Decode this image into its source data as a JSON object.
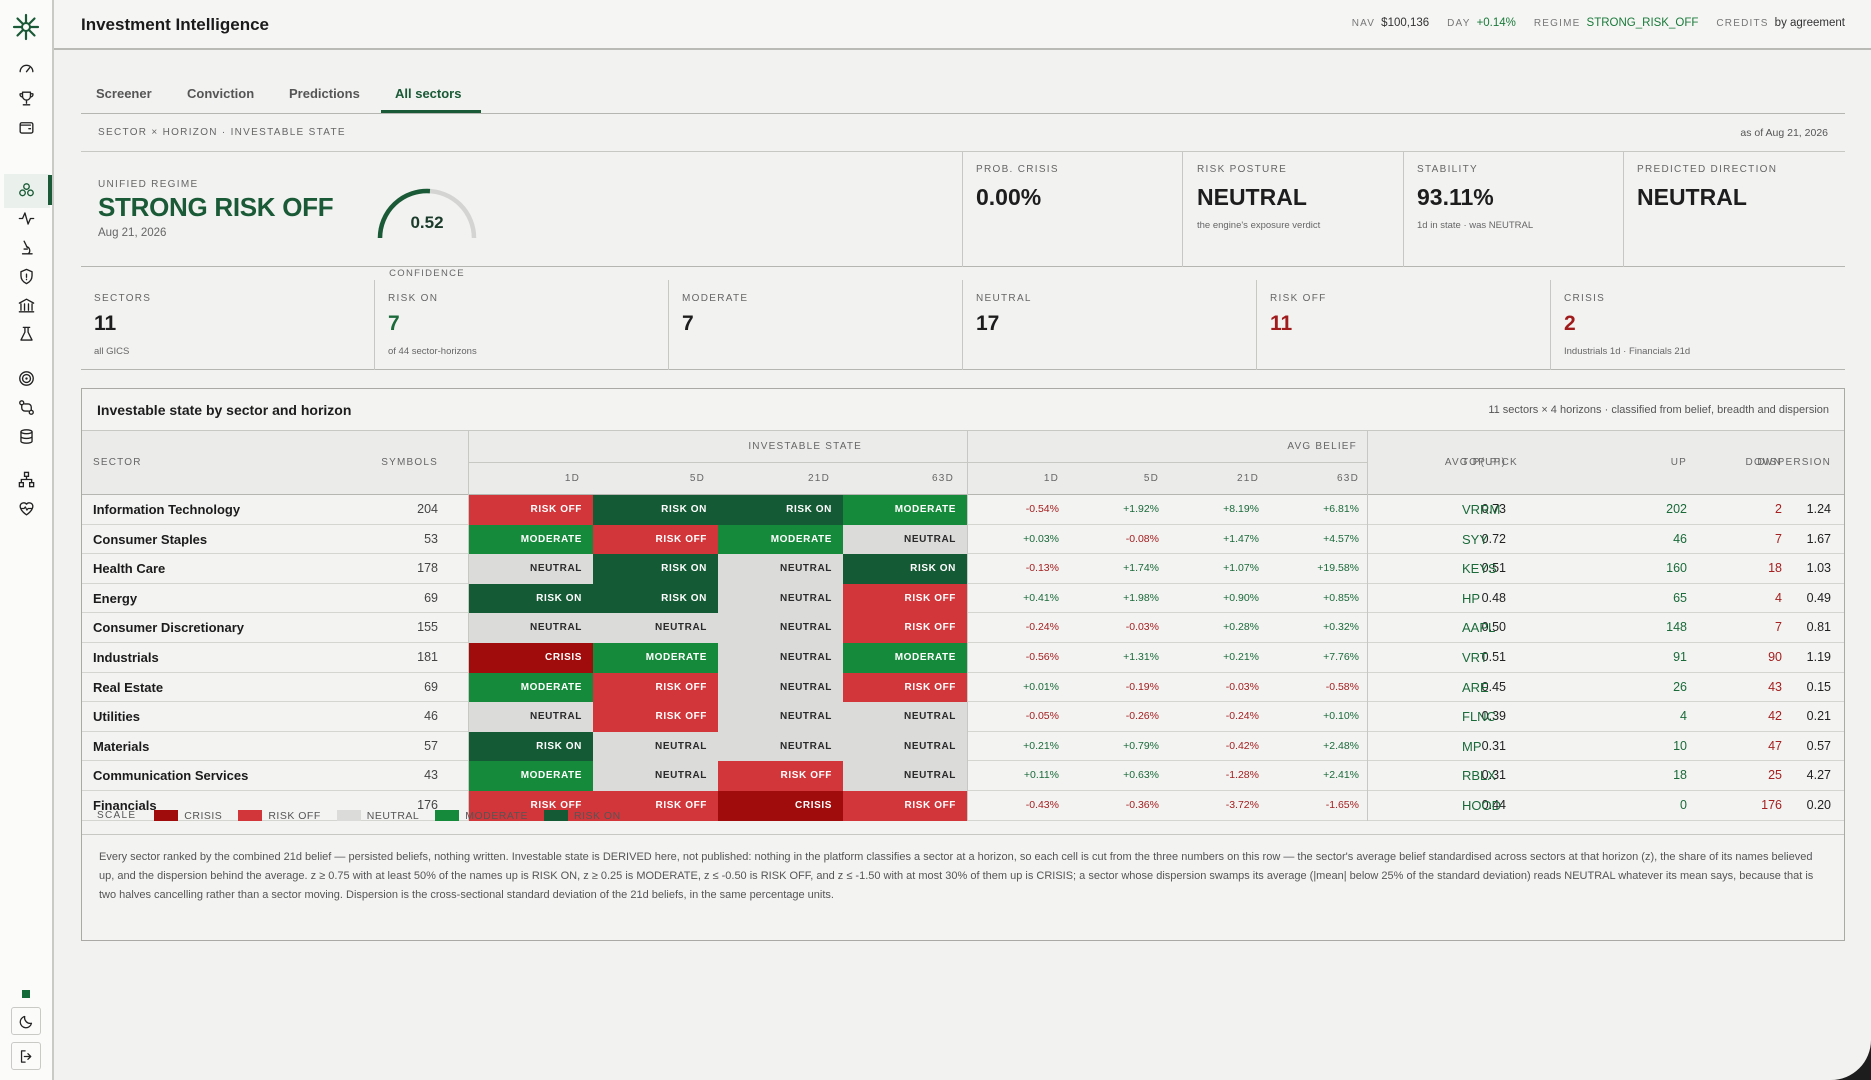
{
  "header": {
    "title": "Investment Intelligence",
    "stats": [
      {
        "label": "NAV",
        "value": "$100,136",
        "tone": "plain"
      },
      {
        "label": "DAY",
        "value": "+0.14%",
        "tone": "green"
      },
      {
        "label": "REGIME",
        "value": "STRONG_RISK_OFF",
        "tone": "green"
      },
      {
        "label": "CREDITS",
        "value": "by agreement",
        "tone": "plain"
      }
    ]
  },
  "tabs": [
    "Screener",
    "Conviction",
    "Predictions",
    "All sectors"
  ],
  "active_tab": "All sectors",
  "section": {
    "title": "SECTOR × HORIZON · INVESTABLE STATE",
    "as_of": "as of Aug 21, 2026"
  },
  "regime": {
    "label": "UNIFIED REGIME",
    "value": "STRONG RISK OFF",
    "date": "Aug 21, 2026",
    "confidence": "0.52",
    "confidence_fraction": 0.52,
    "confidence_label": "CONFIDENCE"
  },
  "stats": [
    {
      "label": "PROB. CRISIS",
      "value": "0.00%",
      "sub": ""
    },
    {
      "label": "RISK POSTURE",
      "value": "NEUTRAL",
      "sub": "the engine's exposure verdict"
    },
    {
      "label": "STABILITY",
      "value": "93.11%",
      "sub": "1d in state · was NEUTRAL"
    },
    {
      "label": "PREDICTED DIRECTION",
      "value": "NEUTRAL",
      "sub": ""
    }
  ],
  "counts": [
    {
      "label": "SECTORS",
      "value": "11",
      "sub": "all GICS",
      "tone": "plain"
    },
    {
      "label": "RISK ON",
      "value": "7",
      "sub": "of 44 sector-horizons",
      "tone": "green"
    },
    {
      "label": "MODERATE",
      "value": "7",
      "sub": "",
      "tone": "plain"
    },
    {
      "label": "NEUTRAL",
      "value": "17",
      "sub": "",
      "tone": "plain"
    },
    {
      "label": "RISK OFF",
      "value": "11",
      "sub": "",
      "tone": "red"
    },
    {
      "label": "CRISIS",
      "value": "2",
      "sub": "Industrials 1d · Financials 21d",
      "tone": "red"
    }
  ],
  "table": {
    "title": "Investable state by sector and horizon",
    "subtitle": "11 sectors × 4 horizons · classified from belief, breadth and dispersion",
    "headers": {
      "sector": "SECTOR",
      "symbols": "SYMBOLS",
      "investable_state": "INVESTABLE STATE",
      "avg_belief": "AVG BELIEF",
      "avg_pup": "AVG P(UP)",
      "top_pick": "TOP PICK",
      "up": "UP",
      "down": "DOWN",
      "dispersion": "DISPERSION",
      "horizons": [
        "1D",
        "5D",
        "21D",
        "63D"
      ]
    },
    "rows": [
      {
        "sector": "Information Technology",
        "symbols": "204",
        "states": [
          "RISK OFF",
          "RISK ON",
          "RISK ON",
          "MODERATE"
        ],
        "beliefs": [
          "-0.54%",
          "+1.92%",
          "+8.19%",
          "+6.81%"
        ],
        "avg_pup": "0.73",
        "top_pick": "VRRM",
        "up": "202",
        "down": "2",
        "dispersion": "1.24"
      },
      {
        "sector": "Consumer Staples",
        "symbols": "53",
        "states": [
          "MODERATE",
          "RISK OFF",
          "MODERATE",
          "NEUTRAL"
        ],
        "beliefs": [
          "+0.03%",
          "-0.08%",
          "+1.47%",
          "+4.57%"
        ],
        "avg_pup": "0.72",
        "top_pick": "SYY",
        "up": "46",
        "down": "7",
        "dispersion": "1.67"
      },
      {
        "sector": "Health Care",
        "symbols": "178",
        "states": [
          "NEUTRAL",
          "RISK ON",
          "NEUTRAL",
          "RISK ON"
        ],
        "beliefs": [
          "-0.13%",
          "+1.74%",
          "+1.07%",
          "+19.58%"
        ],
        "avg_pup": "0.51",
        "top_pick": "KEYS",
        "up": "160",
        "down": "18",
        "dispersion": "1.03"
      },
      {
        "sector": "Energy",
        "symbols": "69",
        "states": [
          "RISK ON",
          "RISK ON",
          "NEUTRAL",
          "RISK OFF"
        ],
        "beliefs": [
          "+0.41%",
          "+1.98%",
          "+0.90%",
          "+0.85%"
        ],
        "avg_pup": "0.48",
        "top_pick": "HP",
        "up": "65",
        "down": "4",
        "dispersion": "0.49"
      },
      {
        "sector": "Consumer Discretionary",
        "symbols": "155",
        "states": [
          "NEUTRAL",
          "NEUTRAL",
          "NEUTRAL",
          "RISK OFF"
        ],
        "beliefs": [
          "-0.24%",
          "-0.03%",
          "+0.28%",
          "+0.32%"
        ],
        "avg_pup": "0.50",
        "top_pick": "AAPL",
        "up": "148",
        "down": "7",
        "dispersion": "0.81"
      },
      {
        "sector": "Industrials",
        "symbols": "181",
        "states": [
          "CRISIS",
          "MODERATE",
          "NEUTRAL",
          "MODERATE"
        ],
        "beliefs": [
          "-0.56%",
          "+1.31%",
          "+0.21%",
          "+7.76%"
        ],
        "avg_pup": "0.51",
        "top_pick": "VRT",
        "up": "91",
        "down": "90",
        "dispersion": "1.19"
      },
      {
        "sector": "Real Estate",
        "symbols": "69",
        "states": [
          "MODERATE",
          "RISK OFF",
          "NEUTRAL",
          "RISK OFF"
        ],
        "beliefs": [
          "+0.01%",
          "-0.19%",
          "-0.03%",
          "-0.58%"
        ],
        "avg_pup": "0.45",
        "top_pick": "ARE",
        "up": "26",
        "down": "43",
        "dispersion": "0.15"
      },
      {
        "sector": "Utilities",
        "symbols": "46",
        "states": [
          "NEUTRAL",
          "RISK OFF",
          "NEUTRAL",
          "NEUTRAL"
        ],
        "beliefs": [
          "-0.05%",
          "-0.26%",
          "-0.24%",
          "+0.10%"
        ],
        "avg_pup": "0.39",
        "top_pick": "FLNC",
        "up": "4",
        "down": "42",
        "dispersion": "0.21"
      },
      {
        "sector": "Materials",
        "symbols": "57",
        "states": [
          "RISK ON",
          "NEUTRAL",
          "NEUTRAL",
          "NEUTRAL"
        ],
        "beliefs": [
          "+0.21%",
          "+0.79%",
          "-0.42%",
          "+2.48%"
        ],
        "avg_pup": "0.31",
        "top_pick": "MP",
        "up": "10",
        "down": "47",
        "dispersion": "0.57"
      },
      {
        "sector": "Communication Services",
        "symbols": "43",
        "states": [
          "MODERATE",
          "NEUTRAL",
          "RISK OFF",
          "NEUTRAL"
        ],
        "beliefs": [
          "+0.11%",
          "+0.63%",
          "-1.28%",
          "+2.41%"
        ],
        "avg_pup": "0.31",
        "top_pick": "RBLX",
        "up": "18",
        "down": "25",
        "dispersion": "4.27"
      },
      {
        "sector": "Financials",
        "symbols": "176",
        "states": [
          "RISK OFF",
          "RISK OFF",
          "CRISIS",
          "RISK OFF"
        ],
        "beliefs": [
          "-0.43%",
          "-0.36%",
          "-3.72%",
          "-1.65%"
        ],
        "avg_pup": "0.44",
        "top_pick": "HOOD",
        "up": "0",
        "down": "176",
        "dispersion": "0.20"
      }
    ]
  },
  "legend": {
    "label": "SCALE",
    "items": [
      {
        "label": "CRISIS",
        "color": "#a00c0c"
      },
      {
        "label": "RISK OFF",
        "color": "#d3363a"
      },
      {
        "label": "NEUTRAL",
        "color": "#dbdbda"
      },
      {
        "label": "MODERATE",
        "color": "#148a3a"
      },
      {
        "label": "RISK ON",
        "color": "#145a34"
      }
    ]
  },
  "note": "Every sector ranked by the combined 21d belief — persisted beliefs, nothing written. Investable state is DERIVED here, not published: nothing in the platform classifies a sector at a horizon, so each cell is cut from the three numbers on this row — the sector's average belief standardised across sectors at that horizon (z), the share of its names believed up, and the dispersion behind the average. z ≥ 0.75 with at least 50% of the names up is RISK ON, z ≥ 0.25 is MODERATE, z ≤ -0.50 is RISK OFF, and z ≤ -1.50 with at most 30% of them up is CRISIS; a sector whose dispersion swamps its average (|mean| below 25% of the standard deviation) reads NEUTRAL whatever its mean says, because that is two halves cancelling rather than a sector moving. Dispersion is the cross-sectional standard deviation of the 21d beliefs, in the same percentage units.",
  "sidebar": {
    "icons": [
      "gauge-icon",
      "trophy-icon",
      "wallet-icon",
      "sectors-icon",
      "pulse-icon",
      "microscope-icon",
      "shield-icon",
      "bank-icon",
      "flask-icon",
      "target-icon",
      "git-compare-icon",
      "database-icon",
      "hierarchy-icon",
      "heart-pulse-icon"
    ],
    "active": "sectors-icon",
    "theme_toggle": "moon-icon",
    "logout": "logout-icon"
  }
}
